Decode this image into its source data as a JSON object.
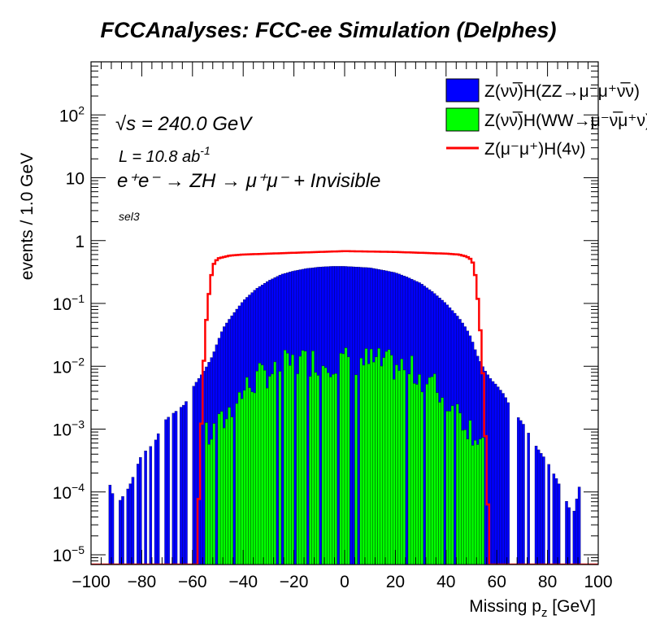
{
  "title": "FCCAnalyses: FCC-ee Simulation (Delphes)",
  "annotations": {
    "sqrts": "√s = 240.0 GeV",
    "lumi_main": "L = 10.8 ab",
    "lumi_sup": "-1",
    "process": "e⁺e⁻ → ZH → μ⁺μ⁻ + Invisible",
    "selection": "sel3"
  },
  "chart_data": {
    "type": "histogram",
    "xlabel": "Missing p",
    "xlabel_sub": "z",
    "xlabel_unit": " [GeV]",
    "ylabel": "events / 1.0 GeV",
    "xlim": [
      -100,
      100
    ],
    "ylim": [
      7e-06,
      700
    ],
    "yscale": "log",
    "bin_width": 1.0,
    "x_ticks": [
      -100,
      -80,
      -60,
      -40,
      -20,
      0,
      20,
      40,
      60,
      80,
      100
    ],
    "x_tick_labels": [
      "−100",
      "−80",
      "−60",
      "−40",
      "−20",
      "0",
      "20",
      "40",
      "60",
      "80",
      "100"
    ],
    "y_ticks": [
      {
        "value": 1e-05,
        "base": "10",
        "exp": "−5"
      },
      {
        "value": 0.0001,
        "base": "10",
        "exp": "−4"
      },
      {
        "value": 0.001,
        "base": "10",
        "exp": "−3"
      },
      {
        "value": 0.01,
        "base": "10",
        "exp": "−2"
      },
      {
        "value": 0.1,
        "base": "10",
        "exp": "−1"
      },
      {
        "value": 1,
        "base": "1",
        "exp": ""
      },
      {
        "value": 10,
        "base": "10",
        "exp": ""
      },
      {
        "value": 100,
        "base": "10",
        "exp": "2"
      }
    ],
    "legend_position": "top-right",
    "stacked": true,
    "series": [
      {
        "name": "Z(νν̅)H(ZZ→μ⁻μ⁺ν̅ν)",
        "color": "#0000ff",
        "style": "filled",
        "stack_total_values_x": [
          -93,
          -90,
          -85,
          -80,
          -75,
          -72,
          -70,
          -66,
          -63,
          -60,
          -58,
          -55,
          -52,
          -50,
          -48,
          -45,
          -40,
          -35,
          -30,
          -25,
          -20,
          -15,
          -10,
          -5,
          0,
          5,
          10,
          15,
          20,
          25,
          30,
          35,
          40,
          45,
          48,
          50,
          52,
          55,
          58,
          60,
          63,
          66,
          70,
          73,
          76,
          80,
          84,
          87,
          90,
          93
        ],
        "stack_total_values_y": [
          0.00015,
          6e-05,
          0.00012,
          0.0004,
          0.0006,
          0.0012,
          0.0015,
          0.002,
          0.0025,
          0.0045,
          0.006,
          0.009,
          0.015,
          0.025,
          0.04,
          0.06,
          0.11,
          0.17,
          0.23,
          0.29,
          0.33,
          0.36,
          0.38,
          0.39,
          0.39,
          0.38,
          0.37,
          0.34,
          0.31,
          0.26,
          0.21,
          0.15,
          0.1,
          0.06,
          0.04,
          0.028,
          0.016,
          0.009,
          0.006,
          0.005,
          0.0035,
          0.002,
          0.0013,
          0.0008,
          0.0005,
          0.0003,
          0.00015,
          8e-05,
          4e-05,
          0.00015
        ]
      },
      {
        "name": "Z(νν̅)H(WW→μ⁻ν̅μ⁺ν)",
        "color": "#00ff00",
        "style": "filled",
        "values_x": [
          -55,
          -50,
          -45,
          -40,
          -35,
          -30,
          -25,
          -20,
          -15,
          -10,
          -5,
          0,
          5,
          10,
          15,
          20,
          25,
          30,
          35,
          40,
          45,
          50,
          55
        ],
        "values_y": [
          0.0007,
          0.001,
          0.002,
          0.004,
          0.006,
          0.008,
          0.01,
          0.011,
          0.012,
          0.012,
          0.012,
          0.012,
          0.012,
          0.012,
          0.011,
          0.01,
          0.009,
          0.007,
          0.005,
          0.003,
          0.0018,
          0.001,
          0.0006
        ]
      },
      {
        "name": "Z(μ⁻μ⁺)H(4ν)",
        "color": "#ff0000",
        "style": "line",
        "values_x": [
          -58,
          -57,
          -56,
          -55,
          -54,
          -53,
          -52,
          -50,
          -45,
          -40,
          -30,
          -20,
          -10,
          0,
          10,
          20,
          30,
          40,
          45,
          48,
          50,
          51,
          52,
          53,
          54,
          55,
          56,
          57
        ],
        "values_y": [
          2e-05,
          0.0003,
          0.005,
          0.03,
          0.1,
          0.2,
          0.4,
          0.52,
          0.58,
          0.6,
          0.62,
          0.64,
          0.66,
          0.68,
          0.67,
          0.66,
          0.64,
          0.62,
          0.6,
          0.56,
          0.5,
          0.4,
          0.2,
          0.07,
          0.02,
          0.003,
          0.0002,
          2e-05
        ]
      }
    ]
  }
}
